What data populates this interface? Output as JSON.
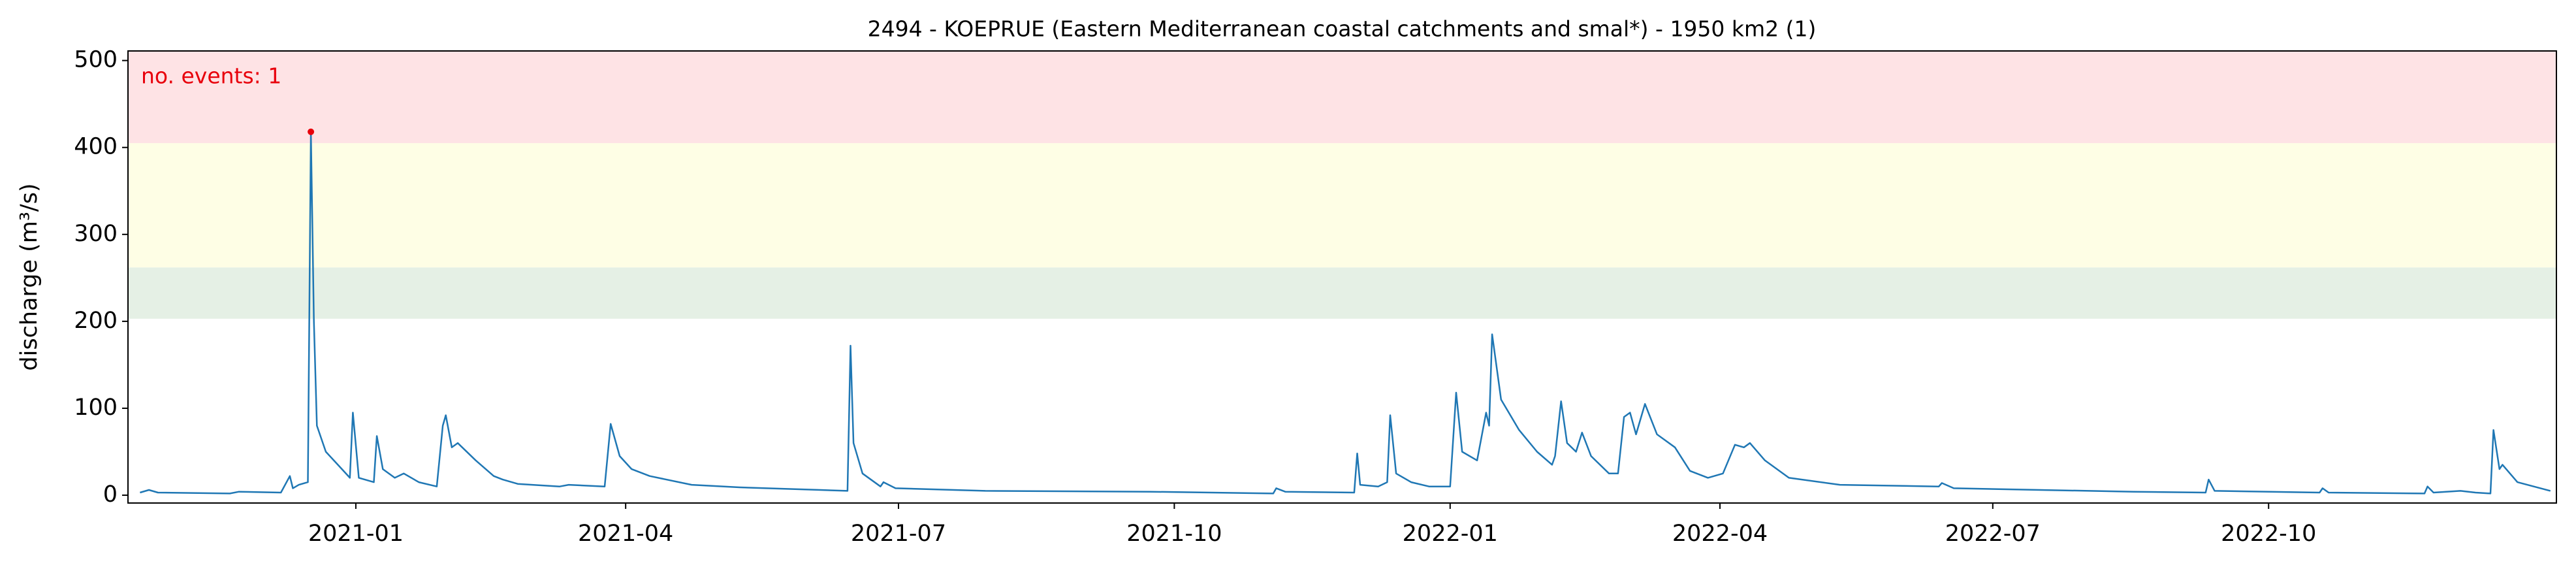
{
  "chart_data": {
    "type": "line",
    "title": "2494 - KOEPRUE (Eastern Mediterranean coastal catchments and smal*) - 1950 km2 (1)",
    "y_label": "discharge (m³/s)",
    "annotation": "no. events: 1",
    "color": "#1f77b4",
    "x": [
      "2020-10-21",
      "2020-10-24",
      "2020-10-27",
      "2020-11-20",
      "2020-11-23",
      "2020-12-07",
      "2020-12-10",
      "2020-12-11",
      "2020-12-13",
      "2020-12-16",
      "2020-12-17",
      "2020-12-18",
      "2020-12-19",
      "2020-12-22",
      "2020-12-26",
      "2020-12-30",
      "2020-12-31",
      "2021-01-02",
      "2021-01-07",
      "2021-01-08",
      "2021-01-10",
      "2021-01-14",
      "2021-01-17",
      "2021-01-22",
      "2021-01-28",
      "2021-01-30",
      "2021-01-31",
      "2021-02-02",
      "2021-02-04",
      "2021-02-10",
      "2021-02-16",
      "2021-02-19",
      "2021-02-24",
      "2021-03-10",
      "2021-03-13",
      "2021-03-25",
      "2021-03-27",
      "2021-03-30",
      "2021-04-03",
      "2021-04-09",
      "2021-04-23",
      "2021-05-09",
      "2021-06-05",
      "2021-06-14",
      "2021-06-15",
      "2021-06-16",
      "2021-06-19",
      "2021-06-25",
      "2021-06-26",
      "2021-06-30",
      "2021-07-30",
      "2021-09-23",
      "2021-11-03",
      "2021-11-04",
      "2021-11-07",
      "2021-11-30",
      "2021-12-01",
      "2021-12-02",
      "2021-12-08",
      "2021-12-11",
      "2021-12-12",
      "2021-12-14",
      "2021-12-19",
      "2021-12-25",
      "2022-01-01",
      "2022-01-03",
      "2022-01-05",
      "2022-01-10",
      "2022-01-13",
      "2022-01-14",
      "2022-01-15",
      "2022-01-18",
      "2022-01-24",
      "2022-01-30",
      "2022-02-04",
      "2022-02-05",
      "2022-02-07",
      "2022-02-09",
      "2022-02-12",
      "2022-02-14",
      "2022-02-17",
      "2022-02-23",
      "2022-02-26",
      "2022-02-28",
      "2022-03-02",
      "2022-03-04",
      "2022-03-07",
      "2022-03-11",
      "2022-03-17",
      "2022-03-22",
      "2022-03-28",
      "2022-04-02",
      "2022-04-06",
      "2022-04-09",
      "2022-04-11",
      "2022-04-16",
      "2022-04-24",
      "2022-05-11",
      "2022-06-13",
      "2022-06-14",
      "2022-06-18",
      "2022-08-17",
      "2022-09-10",
      "2022-09-11",
      "2022-09-13",
      "2022-10-18",
      "2022-10-19",
      "2022-10-21",
      "2022-11-22",
      "2022-11-23",
      "2022-11-25",
      "2022-12-04",
      "2022-12-09",
      "2022-12-14",
      "2022-12-15",
      "2022-12-17",
      "2022-12-18",
      "2022-12-23",
      "2023-01-03"
    ],
    "values": [
      3,
      6,
      3,
      2,
      4,
      3,
      22,
      8,
      12,
      15,
      418,
      200,
      80,
      50,
      35,
      20,
      95,
      20,
      15,
      68,
      30,
      20,
      25,
      15,
      10,
      80,
      92,
      55,
      60,
      40,
      22,
      18,
      13,
      10,
      12,
      10,
      82,
      45,
      30,
      22,
      12,
      9,
      6,
      5,
      172,
      60,
      25,
      10,
      15,
      8,
      5,
      4,
      2,
      8,
      4,
      3,
      48,
      12,
      10,
      15,
      92,
      25,
      15,
      10,
      10,
      118,
      50,
      40,
      95,
      80,
      185,
      110,
      75,
      50,
      35,
      45,
      108,
      60,
      50,
      72,
      45,
      25,
      25,
      90,
      95,
      70,
      105,
      70,
      55,
      28,
      20,
      25,
      58,
      55,
      60,
      40,
      20,
      12,
      10,
      14,
      8,
      4,
      3,
      18,
      5,
      3,
      8,
      3,
      2,
      10,
      3,
      5,
      3,
      2,
      75,
      30,
      35,
      15,
      5
    ],
    "events": {
      "x": [
        "2020-12-17"
      ],
      "values": [
        418
      ],
      "color": "#e8000b"
    },
    "thresholds": [
      203,
      262,
      405
    ],
    "threshold_colors": [
      "#e5f0e5",
      "#fefee5",
      "#fee3e5"
    ],
    "xlim": [
      "2020-10-17",
      "2023-01-05"
    ],
    "xticks": [
      "2021-01",
      "2021-04",
      "2021-07",
      "2021-10",
      "2022-01",
      "2022-04",
      "2022-07",
      "2022-10"
    ],
    "ylim": [
      -9,
      511
    ],
    "yticks": [
      0,
      100,
      200,
      300,
      400,
      500
    ]
  }
}
